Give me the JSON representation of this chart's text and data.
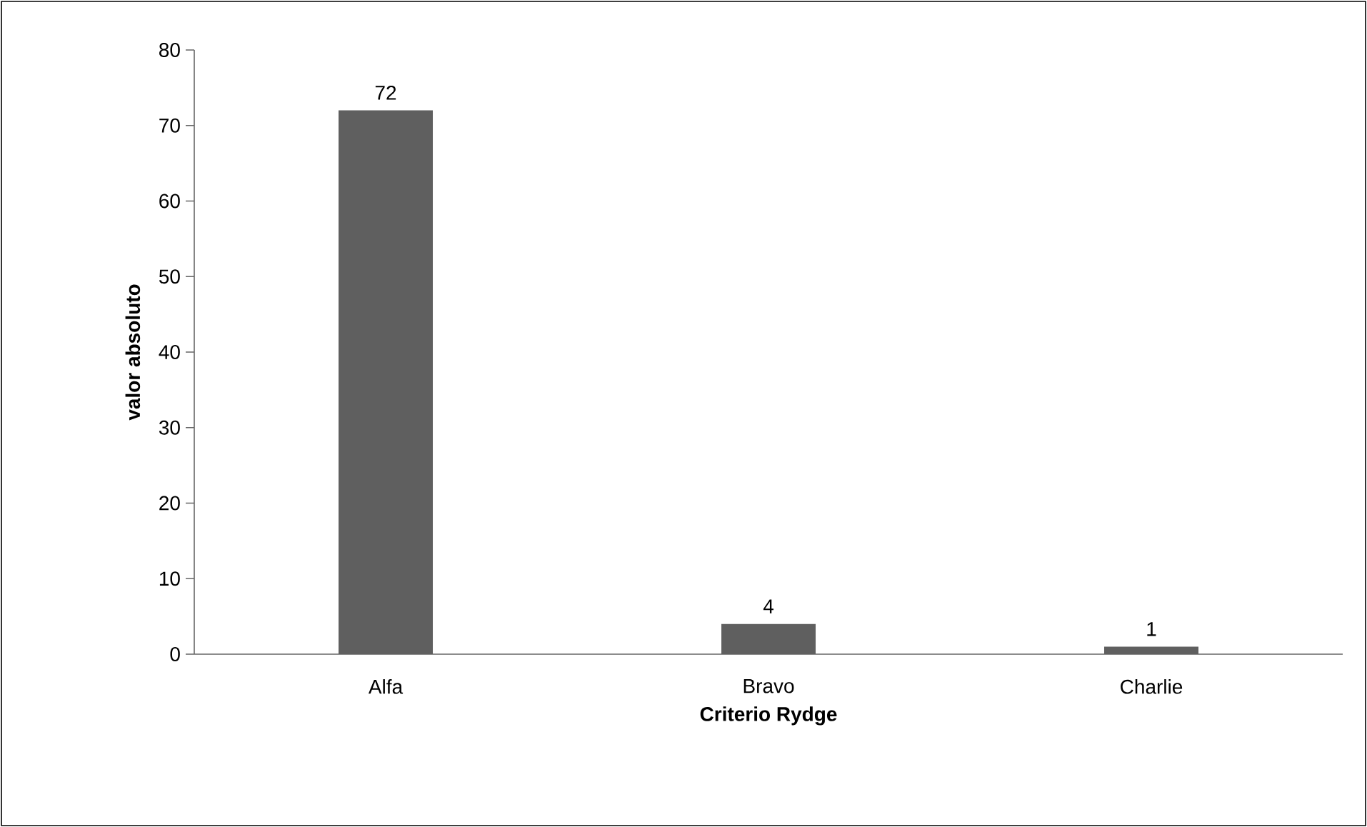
{
  "chart_data": {
    "type": "bar",
    "xlabel": "Criterio Rydge",
    "ylabel": "valor absoluto",
    "categories": [
      "Alfa",
      "Bravo",
      "Charlie"
    ],
    "values": [
      72,
      4,
      1
    ],
    "color": "#5f5f5f",
    "ylim": [
      0,
      80
    ],
    "yticks": [
      0,
      10,
      20,
      30,
      40,
      50,
      60,
      70,
      80
    ],
    "data_labels": true,
    "grid": false
  }
}
